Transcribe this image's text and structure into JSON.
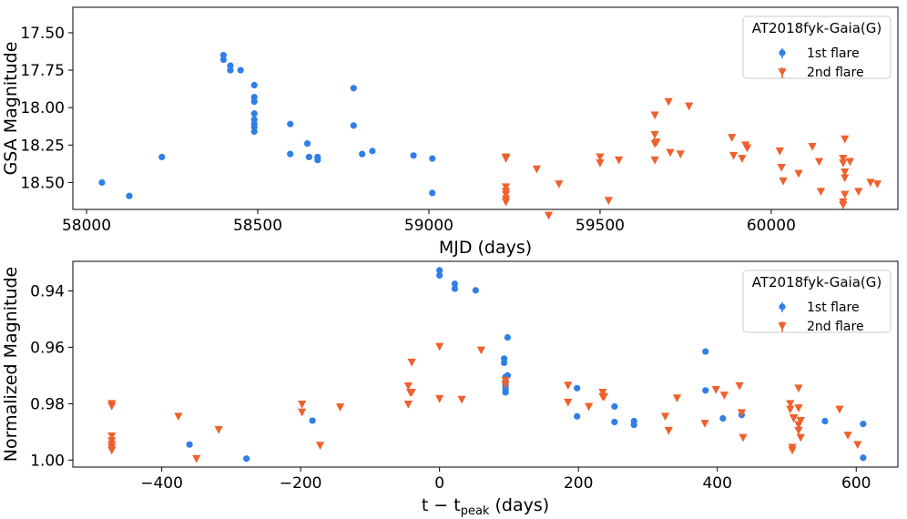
{
  "colors": {
    "flare1": "#2f7fe6",
    "flare2": "#f0602c"
  },
  "legend": {
    "title": "AT2018fyk-Gaia(G)",
    "entry1": "1st flare",
    "entry2": "2nd flare"
  },
  "chart_data": [
    {
      "type": "scatter",
      "title": "",
      "xlabel": "MJD (days)",
      "ylabel": "GSA Magnitude",
      "xlim": [
        57960,
        60370
      ],
      "ylim": [
        18.68,
        17.33
      ],
      "y_inverted": true,
      "xticks": [
        58000,
        58500,
        59000,
        59500,
        60000
      ],
      "xtick_labels": [
        "58000",
        "58500",
        "59000",
        "59500",
        "60000"
      ],
      "yticks": [
        17.5,
        17.75,
        18.0,
        18.25,
        18.5
      ],
      "ytick_labels": [
        "17.50",
        "17.75",
        "18.00",
        "18.25",
        "18.50"
      ],
      "legend_position": "top-right",
      "series": [
        {
          "name": "1st flare",
          "marker": "circle",
          "x": [
            58045,
            58125,
            58220,
            58400,
            58400,
            58420,
            58420,
            58450,
            58490,
            58490,
            58490,
            58490,
            58490,
            58490,
            58490,
            58490,
            58595,
            58595,
            58645,
            58650,
            58675,
            58675,
            58780,
            58780,
            58805,
            58835,
            58955,
            59010,
            59010
          ],
          "y": [
            18.5,
            18.59,
            18.33,
            17.65,
            17.68,
            17.72,
            17.75,
            17.75,
            17.85,
            17.93,
            17.96,
            18.04,
            18.08,
            18.11,
            18.13,
            18.16,
            18.11,
            18.31,
            18.24,
            18.33,
            18.33,
            18.35,
            17.87,
            18.12,
            18.31,
            18.29,
            18.32,
            18.34,
            18.57
          ]
        },
        {
          "name": "2nd flare",
          "marker": "triangle-down",
          "x": [
            59225,
            59225,
            59225,
            59225,
            59225,
            59225,
            59225,
            59315,
            59350,
            59380,
            59500,
            59500,
            59525,
            59555,
            59660,
            59660,
            59660,
            59660,
            59665,
            59700,
            59705,
            59735,
            59760,
            59885,
            59890,
            59915,
            59925,
            59930,
            60025,
            60030,
            60035,
            60080,
            60120,
            60140,
            60145,
            60210,
            60210,
            60210,
            60210,
            60215,
            60215,
            60215,
            60215,
            60230,
            60255,
            60290,
            60310
          ],
          "y": [
            18.33,
            18.34,
            18.53,
            18.56,
            18.58,
            18.61,
            18.63,
            18.41,
            18.72,
            18.51,
            18.33,
            18.37,
            18.62,
            18.35,
            18.05,
            18.18,
            18.24,
            18.35,
            18.23,
            17.96,
            18.3,
            18.31,
            17.99,
            18.2,
            18.32,
            18.34,
            18.25,
            18.27,
            18.29,
            18.4,
            18.49,
            18.44,
            18.26,
            18.36,
            18.56,
            18.34,
            18.37,
            18.63,
            18.65,
            18.21,
            18.43,
            18.47,
            18.58,
            18.36,
            18.56,
            18.5,
            18.51
          ]
        }
      ]
    },
    {
      "type": "scatter",
      "title": "",
      "xlabel": "t − t",
      "xlabel_sub": "peak",
      "xlabel_unit": " (days)",
      "ylabel": "Normalized Magnitude",
      "xlim": [
        -528,
        660
      ],
      "ylim": [
        1.0025,
        0.9295
      ],
      "y_inverted": true,
      "xticks": [
        -400,
        -200,
        0,
        200,
        400,
        600
      ],
      "xtick_labels": [
        "−400",
        "−200",
        "0",
        "200",
        "400",
        "600"
      ],
      "yticks": [
        0.94,
        0.96,
        0.98,
        1.0
      ],
      "ytick_labels": [
        "0.94",
        "0.96",
        "0.98",
        "1.00"
      ],
      "legend_position": "top-right",
      "series": [
        {
          "name": "1st flare",
          "marker": "circle",
          "x": [
            -360,
            -278,
            -183,
            0,
            0,
            22,
            22,
            52,
            93,
            93,
            95,
            95,
            95,
            95,
            95,
            95,
            98,
            98,
            198,
            198,
            252,
            252,
            280,
            280,
            383,
            383,
            408,
            435,
            555,
            610,
            610
          ],
          "y": [
            0.9945,
            0.9995,
            0.986,
            0.9327,
            0.9345,
            0.9375,
            0.9392,
            0.9398,
            0.964,
            0.9655,
            0.9705,
            0.972,
            0.973,
            0.974,
            0.975,
            0.976,
            0.9565,
            0.97,
            0.9745,
            0.9845,
            0.981,
            0.9865,
            0.9862,
            0.9875,
            0.9753,
            0.9615,
            0.9852,
            0.984,
            0.9862,
            0.9872,
            0.9992
          ]
        },
        {
          "name": "2nd flare",
          "marker": "triangle-down",
          "x": [
            -472,
            -472,
            -472,
            -472,
            -472,
            -472,
            -472,
            -376,
            -350,
            -318,
            -198,
            -198,
            -172,
            -143,
            -45,
            -45,
            -42,
            -40,
            -40,
            0,
            0,
            32,
            60,
            95,
            95,
            185,
            185,
            215,
            235,
            235,
            237,
            325,
            330,
            342,
            382,
            398,
            410,
            432,
            435,
            437,
            505,
            505,
            508,
            508,
            510,
            510,
            517,
            517,
            517,
            517,
            520,
            520,
            576,
            588,
            602
          ],
          "y": [
            0.98,
            0.9808,
            0.9915,
            0.9932,
            0.9945,
            0.9955,
            0.9965,
            0.9845,
            0.9995,
            0.9892,
            0.9802,
            0.983,
            0.9948,
            0.9812,
            0.9737,
            0.9802,
            0.976,
            0.9653,
            0.976,
            0.9597,
            0.9782,
            0.9785,
            0.961,
            0.9718,
            0.9732,
            0.9735,
            0.9795,
            0.981,
            0.976,
            0.9775,
            0.9775,
            0.9845,
            0.9895,
            0.978,
            0.987,
            0.975,
            0.977,
            0.9737,
            0.9832,
            0.992,
            0.98,
            0.982,
            0.9955,
            0.9965,
            0.985,
            0.9852,
            0.9745,
            0.9815,
            0.9875,
            0.9895,
            0.986,
            0.992,
            0.982,
            0.9912,
            0.9945
          ]
        }
      ]
    }
  ]
}
